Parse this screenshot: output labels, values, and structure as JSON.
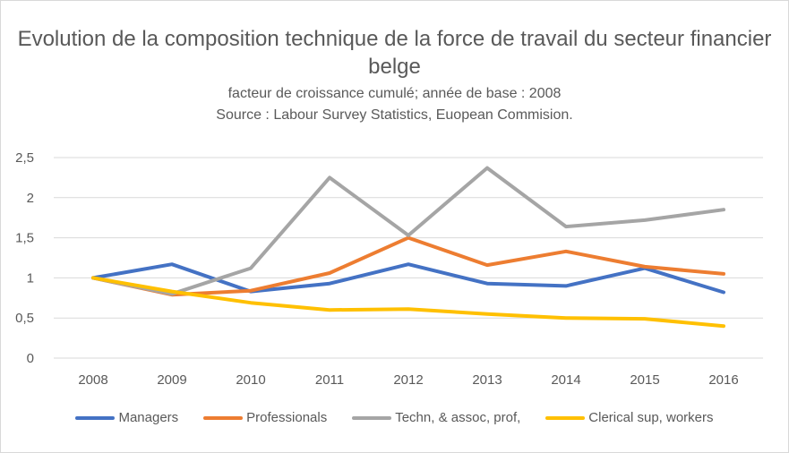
{
  "chart_data": {
    "type": "line",
    "title": "Evolution de la composition technique de la force de travail du secteur financier belge",
    "subtitle": "facteur de croissance cumulé; année de base : 2008",
    "source": "Source : Labour Survey Statistics, Euopean Commision.",
    "xlabel": "",
    "ylabel": "",
    "categories": [
      "2008",
      "2009",
      "2010",
      "2011",
      "2012",
      "2013",
      "2014",
      "2015",
      "2016"
    ],
    "ylim": [
      0,
      2.5
    ],
    "yticks": [
      0,
      0.5,
      1,
      1.5,
      2,
      2.5
    ],
    "ytick_labels": [
      "0",
      "0,5",
      "1",
      "1,5",
      "2",
      "2,5"
    ],
    "grid": true,
    "legend_position": "bottom",
    "series": [
      {
        "name": "Managers",
        "color": "#4472c4",
        "values": [
          1.0,
          1.17,
          0.83,
          0.93,
          1.17,
          0.93,
          0.9,
          1.12,
          0.82
        ]
      },
      {
        "name": "Professionals",
        "color": "#ed7d31",
        "values": [
          1.0,
          0.79,
          0.84,
          1.06,
          1.5,
          1.16,
          1.33,
          1.14,
          1.05
        ]
      },
      {
        "name": "Techn, & assoc, prof,",
        "color": "#a5a5a5",
        "values": [
          1.0,
          0.8,
          1.12,
          2.25,
          1.53,
          2.37,
          1.64,
          1.72,
          1.85
        ]
      },
      {
        "name": "Clerical sup, workers",
        "color": "#ffc000",
        "values": [
          1.0,
          0.83,
          0.69,
          0.6,
          0.61,
          0.55,
          0.5,
          0.49,
          0.4
        ]
      }
    ]
  }
}
